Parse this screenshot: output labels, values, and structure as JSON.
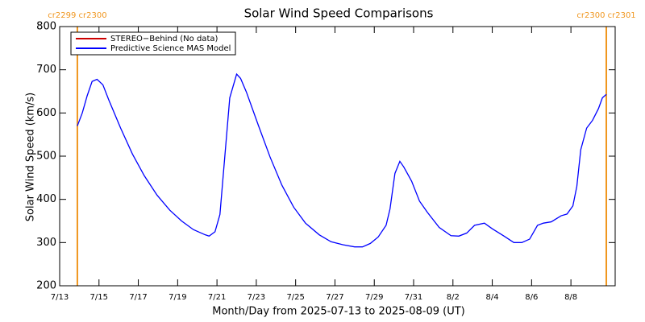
{
  "chart_data": {
    "type": "line",
    "title": "Solar Wind Speed Comparisons",
    "xlabel": "Month/Day from 2025-07-13 to 2025-08-09 (UT)",
    "ylabel": "Solar Wind Speed (km/s)",
    "xlim": [
      0,
      28.25
    ],
    "ylim": [
      200,
      800
    ],
    "yticks": [
      200,
      300,
      400,
      500,
      600,
      700,
      800
    ],
    "xticks": [
      {
        "value": 0,
        "label": "7/13"
      },
      {
        "value": 2,
        "label": "7/15"
      },
      {
        "value": 4,
        "label": "7/17"
      },
      {
        "value": 6,
        "label": "7/19"
      },
      {
        "value": 8,
        "label": "7/21"
      },
      {
        "value": 10,
        "label": "7/23"
      },
      {
        "value": 12,
        "label": "7/25"
      },
      {
        "value": 14,
        "label": "7/27"
      },
      {
        "value": 16,
        "label": "7/29"
      },
      {
        "value": 18,
        "label": "7/31"
      },
      {
        "value": 20,
        "label": "8/2"
      },
      {
        "value": 22,
        "label": "8/4"
      },
      {
        "value": 24,
        "label": "8/6"
      },
      {
        "value": 26,
        "label": "8/8"
      }
    ],
    "legend": [
      {
        "name": "STEREO−Behind (No data)",
        "color": "#cc0000"
      }
    ],
    "x": [
      0.9,
      1.15,
      1.4,
      1.65,
      1.9,
      2.2,
      2.5,
      3.1,
      3.7,
      4.3,
      4.95,
      5.6,
      6.2,
      6.8,
      7.4,
      7.6,
      7.9,
      8.15,
      8.65,
      9.0,
      9.2,
      9.5,
      10.1,
      10.7,
      11.3,
      11.9,
      12.5,
      13.2,
      13.8,
      14.4,
      15.0,
      15.4,
      15.8,
      16.2,
      16.6,
      16.8,
      17.05,
      17.3,
      17.5,
      17.9,
      18.3,
      18.7,
      19.3,
      19.9,
      20.3,
      20.7,
      21.1,
      21.6,
      22.0,
      22.6,
      23.1,
      23.5,
      23.9,
      24.3,
      24.6,
      25.0,
      25.5,
      25.8,
      26.1,
      26.3,
      26.5,
      26.8,
      27.1,
      27.4,
      27.6,
      27.8
    ],
    "series": [
      {
        "name": "Predictive Science MAS Model",
        "color": "#0000ff",
        "values": [
          570,
          600,
          640,
          673,
          678,
          665,
          630,
          565,
          505,
          455,
          410,
          375,
          350,
          330,
          318,
          315,
          325,
          365,
          635,
          690,
          680,
          648,
          572,
          498,
          433,
          382,
          345,
          318,
          302,
          295,
          290,
          290,
          298,
          313,
          340,
          378,
          460,
          488,
          475,
          442,
          396,
          370,
          335,
          316,
          315,
          322,
          340,
          345,
          332,
          315,
          300,
          300,
          308,
          340,
          345,
          348,
          362,
          366,
          385,
          430,
          515,
          565,
          583,
          610,
          635,
          643
        ]
      }
    ],
    "annotations": [
      {
        "text": "cr2299 cr2300",
        "x": 0.9
      },
      {
        "text": "cr2300 cr2301",
        "x": 27.8
      }
    ],
    "annotation_color": "#f0961e"
  }
}
